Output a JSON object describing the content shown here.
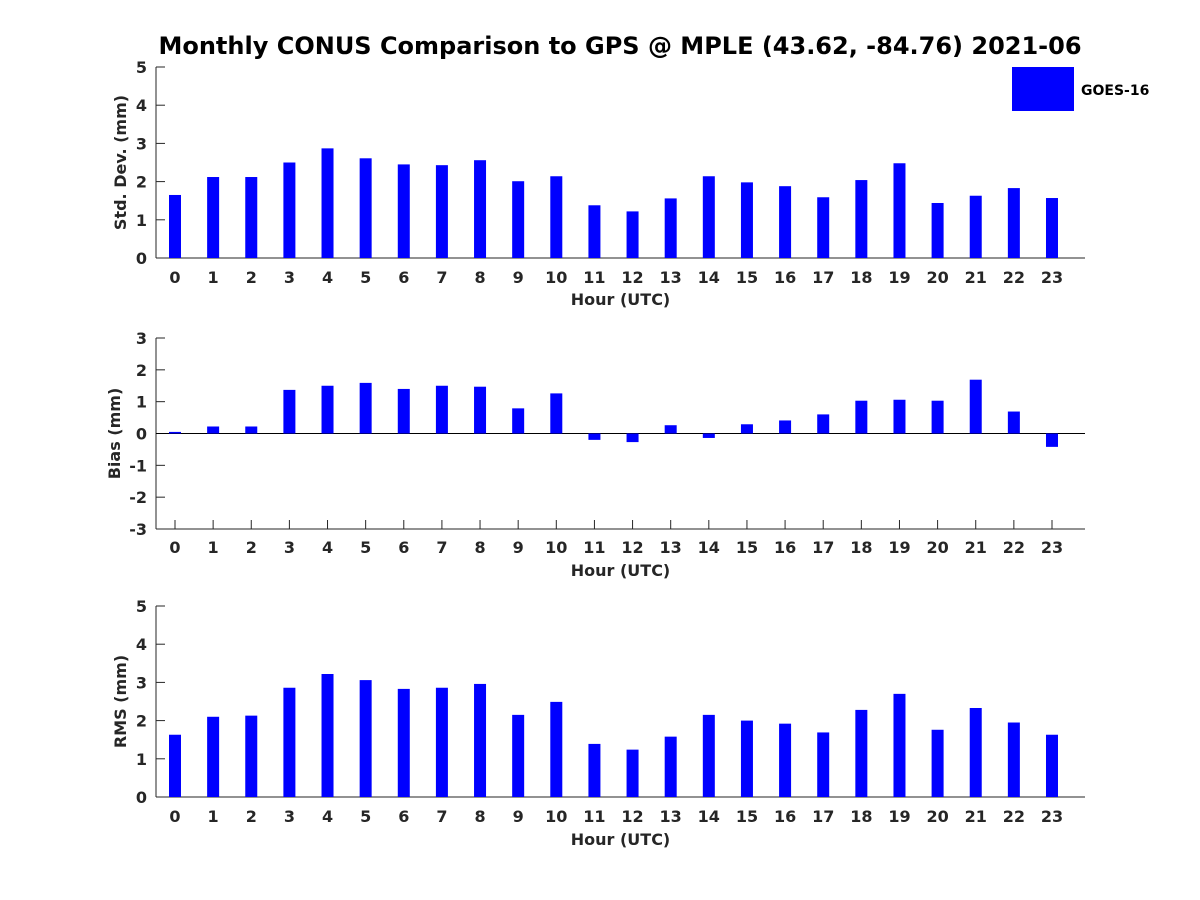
{
  "chart_data": [
    {
      "type": "bar",
      "title": "Monthly CONUS Comparison to GPS @ MPLE (43.62, -84.76) 2021-06",
      "xlabel": "Hour (UTC)",
      "ylabel": "Std. Dev. (mm)",
      "ylim": [
        0,
        5
      ],
      "yticks": [
        0,
        1,
        2,
        3,
        4,
        5
      ],
      "categories": [
        "0",
        "1",
        "2",
        "3",
        "4",
        "5",
        "6",
        "7",
        "8",
        "9",
        "10",
        "11",
        "12",
        "13",
        "14",
        "15",
        "16",
        "17",
        "18",
        "19",
        "20",
        "21",
        "22",
        "23"
      ],
      "series": [
        {
          "name": "GOES-16",
          "color": "#0000ff",
          "values": [
            1.65,
            2.12,
            2.12,
            2.5,
            2.87,
            2.61,
            2.45,
            2.43,
            2.56,
            2.01,
            2.14,
            1.38,
            1.22,
            1.56,
            2.14,
            1.98,
            1.88,
            1.59,
            2.04,
            2.48,
            1.44,
            1.63,
            1.83,
            1.57
          ]
        }
      ],
      "legend_position": "top-right",
      "grid": false
    },
    {
      "type": "bar",
      "title": "",
      "xlabel": "Hour (UTC)",
      "ylabel": "Bias (mm)",
      "ylim": [
        -3,
        3
      ],
      "yticks": [
        3,
        2,
        1,
        0,
        -1,
        -2,
        -3
      ],
      "categories": [
        "0",
        "1",
        "2",
        "3",
        "4",
        "5",
        "6",
        "7",
        "8",
        "9",
        "10",
        "11",
        "12",
        "13",
        "14",
        "15",
        "16",
        "17",
        "18",
        "19",
        "20",
        "21",
        "22",
        "23"
      ],
      "series": [
        {
          "name": "GOES-16",
          "color": "#0000ff",
          "values": [
            0.05,
            0.22,
            0.22,
            1.37,
            1.5,
            1.59,
            1.4,
            1.5,
            1.47,
            0.79,
            1.26,
            -0.2,
            -0.27,
            0.26,
            -0.14,
            0.29,
            0.41,
            0.6,
            1.03,
            1.06,
            1.03,
            1.69,
            0.69,
            -0.42
          ]
        }
      ],
      "grid": false
    },
    {
      "type": "bar",
      "title": "",
      "xlabel": "Hour (UTC)",
      "ylabel": "RMS (mm)",
      "ylim": [
        0,
        5
      ],
      "yticks": [
        0,
        1,
        2,
        3,
        4,
        5
      ],
      "categories": [
        "0",
        "1",
        "2",
        "3",
        "4",
        "5",
        "6",
        "7",
        "8",
        "9",
        "10",
        "11",
        "12",
        "13",
        "14",
        "15",
        "16",
        "17",
        "18",
        "19",
        "20",
        "21",
        "22",
        "23"
      ],
      "series": [
        {
          "name": "GOES-16",
          "color": "#0000ff",
          "values": [
            1.63,
            2.1,
            2.13,
            2.86,
            3.22,
            3.06,
            2.83,
            2.86,
            2.96,
            2.15,
            2.49,
            1.39,
            1.24,
            1.58,
            2.15,
            2.0,
            1.92,
            1.69,
            2.28,
            2.7,
            1.76,
            2.33,
            1.95,
            1.63
          ]
        }
      ],
      "grid": false
    }
  ],
  "legend": {
    "label": "GOES-16",
    "color": "#0000ff"
  }
}
